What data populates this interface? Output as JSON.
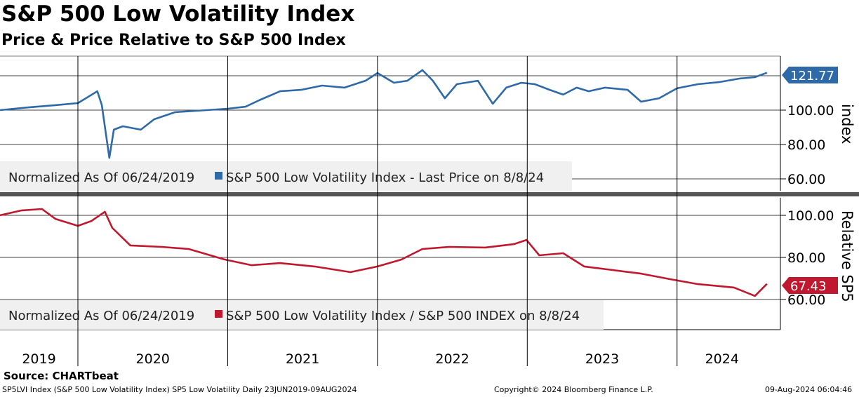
{
  "title": "S&P 500 Low Volatility Index",
  "subtitle": "Price & Price Relative to S&P 500 Index",
  "source": "Source: CHARTbeat",
  "footer": {
    "left": "SP5LVI Index (S&P 500 Low Volatility Index) SP5 Low Volatility  Daily 23JUN2019-09AUG2024",
    "center": "Copyright© 2024 Bloomberg Finance L.P.",
    "right": "09-Aug-2024 06:04:46"
  },
  "colors": {
    "price": "#2e6aa8",
    "relative": "#c0182e"
  },
  "chart_data": [
    {
      "type": "line",
      "title": "Price",
      "ylabel": "index",
      "ylim": [
        50,
        130
      ],
      "yticks": [
        "60.00",
        "80.00",
        "100.00"
      ],
      "ytick_values": [
        60,
        80,
        100
      ],
      "grid_values": [
        60,
        80,
        100,
        120
      ],
      "last_value_label": "121.77",
      "last_value": 121.77,
      "legend": {
        "prefix": "Normalized As Of 06/24/2019",
        "entry": "S&P 500 Low Volatility Index  - Last Price on 8/8/24",
        "placement": "bottom-left"
      },
      "x": [
        2019.48,
        2019.67,
        2019.85,
        2020.0,
        2020.13,
        2020.16,
        2020.19,
        2020.21,
        2020.24,
        2020.3,
        2020.42,
        2020.51,
        2020.65,
        2020.79,
        2021.0,
        2021.12,
        2021.21,
        2021.35,
        2021.49,
        2021.63,
        2021.78,
        2021.92,
        2022.0,
        2022.11,
        2022.2,
        2022.3,
        2022.37,
        2022.45,
        2022.53,
        2022.67,
        2022.77,
        2022.86,
        2022.96,
        2023.05,
        2023.15,
        2023.24,
        2023.33,
        2023.41,
        2023.52,
        2023.67,
        2023.76,
        2023.88,
        2024.0,
        2024.14,
        2024.28,
        2024.42,
        2024.52,
        2024.6
      ],
      "values": [
        100,
        101.6,
        102.9,
        104.1,
        111,
        102.9,
        84.5,
        72.2,
        88.6,
        90.6,
        88.6,
        94.7,
        98.8,
        99.6,
        100.8,
        102,
        105.7,
        111,
        111.8,
        114.3,
        113.1,
        117.1,
        121.6,
        115.9,
        117.1,
        123.3,
        117.1,
        106.9,
        115.1,
        117.1,
        103.7,
        113.1,
        115.9,
        115.1,
        111.8,
        109,
        113.1,
        111,
        113.1,
        111.8,
        104.9,
        106.9,
        112.7,
        115.1,
        116.3,
        118.4,
        119.2,
        121.77
      ]
    },
    {
      "type": "line",
      "title": "Relative",
      "ylabel": "Relative SP5",
      "ylim": [
        47,
        110
      ],
      "yticks": [
        "60.00",
        "80.00",
        "100.00"
      ],
      "ytick_values": [
        60,
        80,
        100
      ],
      "last_value_label": "67.43",
      "last_value": 67.43,
      "legend": {
        "prefix": "Normalized As Of 06/24/2019",
        "entry": "S&P 500 Low Volatility Index / S&P 500 INDEX on 8/8/24",
        "placement": "bottom-left"
      },
      "x": [
        2019.48,
        2019.62,
        2019.76,
        2019.85,
        2020.0,
        2020.09,
        2020.18,
        2020.23,
        2020.35,
        2020.56,
        2020.74,
        2020.98,
        2021.16,
        2021.35,
        2021.58,
        2021.82,
        2022.0,
        2022.16,
        2022.3,
        2022.48,
        2022.72,
        2022.91,
        2022.995,
        2023.08,
        2023.24,
        2023.38,
        2023.57,
        2023.76,
        2023.95,
        2024.14,
        2024.38,
        2024.52,
        2024.6
      ],
      "values": [
        100,
        102.3,
        103,
        98.3,
        95,
        97.3,
        101.7,
        94,
        85.7,
        85,
        84,
        79,
        76.3,
        77.3,
        75.7,
        73,
        75.7,
        79,
        84,
        85,
        84.7,
        86.3,
        88.3,
        81,
        82,
        75.7,
        74,
        72.3,
        69.7,
        67.3,
        65.7,
        61.7,
        67.43
      ]
    }
  ],
  "xaxis": {
    "labels": [
      "2019",
      "2020",
      "2021",
      "2022",
      "2023",
      "2024"
    ],
    "label_centers": [
      2019.74,
      2020.5,
      2021.5,
      2022.5,
      2023.5,
      2024.3
    ],
    "dividers": [
      2020,
      2021,
      2022,
      2023,
      2024
    ],
    "xlim": [
      2019.48,
      2024.69
    ]
  }
}
